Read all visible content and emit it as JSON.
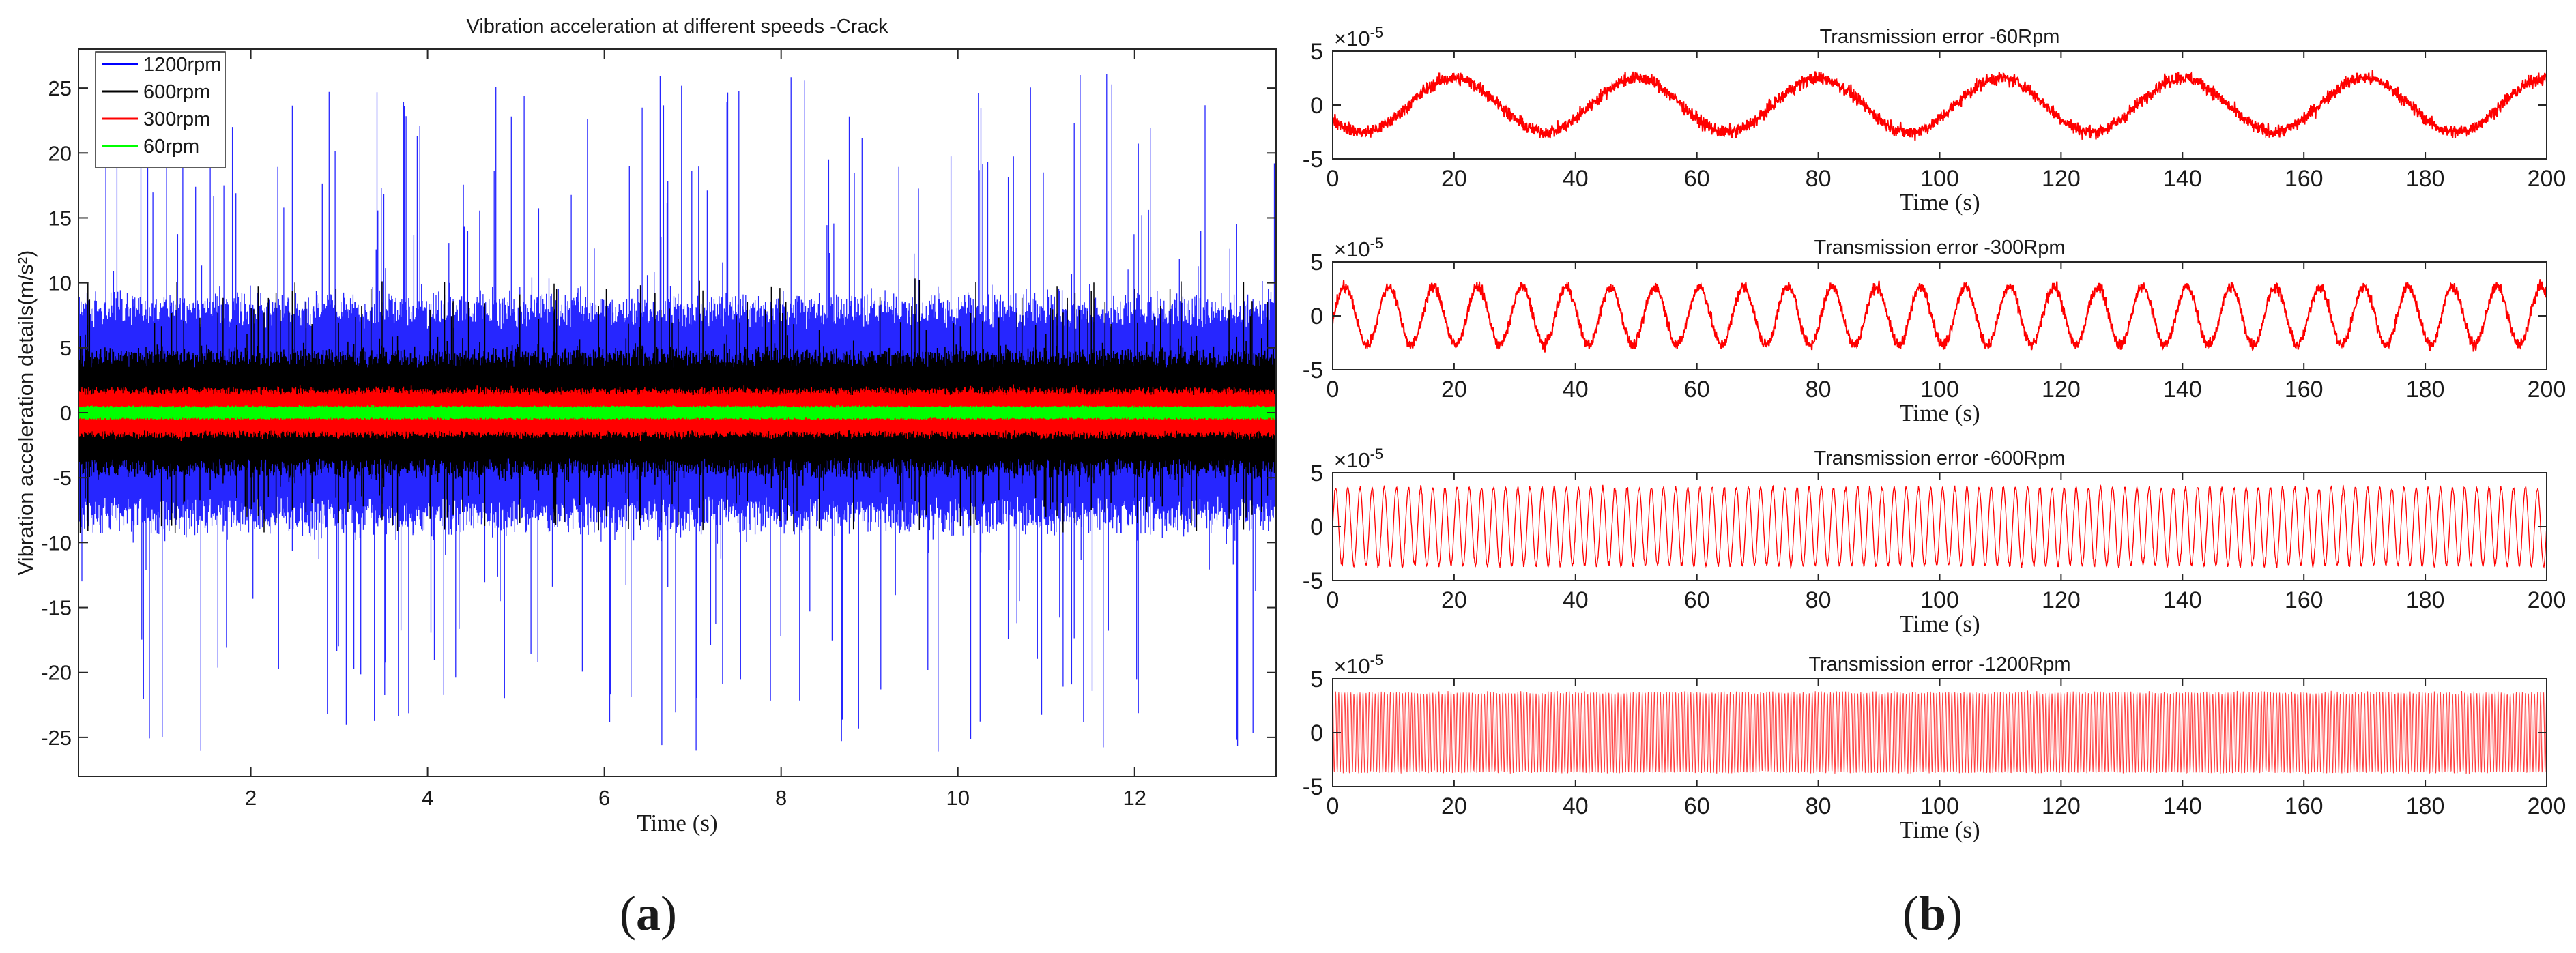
{
  "figure": {
    "panel_labels": [
      {
        "open": "(",
        "letter": "a",
        "close": ")"
      },
      {
        "open": "(",
        "letter": "b",
        "close": ")"
      }
    ]
  },
  "chart_data": [
    {
      "type": "line",
      "title": "Vibration acceleration at different speeds -Crack",
      "xlabel": "Time (s)",
      "ylabel": "Vibration acceleration details(m/s²)",
      "xlim": [
        0.05,
        13.6
      ],
      "ylim": [
        -28,
        28
      ],
      "xticks": [
        2,
        4,
        6,
        8,
        10,
        12
      ],
      "xtick_labels": [
        "2",
        "4",
        "6",
        "8",
        "10",
        "12"
      ],
      "yticks": [
        -25,
        -20,
        -15,
        -10,
        -5,
        0,
        5,
        10,
        15,
        20,
        25
      ],
      "ytick_labels": [
        "-25",
        "-20",
        "-15",
        "-10",
        "-5",
        "0",
        "5",
        "10",
        "15",
        "20",
        "25"
      ],
      "grid": false,
      "legend_position": "top-left",
      "series": [
        {
          "name": "1200rpm",
          "color": "#0000ff",
          "band": 8.5,
          "peak": 26.3
        },
        {
          "name": "600rpm",
          "color": "#000000",
          "band": 4.6,
          "peak": 10.5
        },
        {
          "name": "300rpm",
          "color": "#ff0000",
          "band": 1.8,
          "peak": 2.6
        },
        {
          "name": "60rpm",
          "color": "#00ff00",
          "band": 0.5,
          "peak": 0.8
        }
      ]
    },
    {
      "type": "line",
      "title": "Transmission error -60Rpm",
      "xlabel": "Time (s)",
      "exponent_base": "×10",
      "exponent_power": "-5",
      "xlim": [
        0,
        200
      ],
      "ylim": [
        -5,
        5
      ],
      "xticks": [
        0,
        20,
        40,
        60,
        80,
        100,
        120,
        140,
        160,
        180,
        200
      ],
      "xtick_labels": [
        "0",
        "20",
        "40",
        "60",
        "80",
        "100",
        "120",
        "140",
        "160",
        "180",
        "200"
      ],
      "yticks": [
        -5,
        0,
        5
      ],
      "ytick_labels": [
        "-5",
        "0",
        "5"
      ],
      "series": [
        {
          "color": "#ff0000",
          "amplitude": 2.5,
          "period": 30,
          "phase_peak_at": 20,
          "noise": 0.6
        }
      ]
    },
    {
      "type": "line",
      "title": "Transmission error -300Rpm",
      "xlabel": "Time (s)",
      "exponent_base": "×10",
      "exponent_power": "-5",
      "xlim": [
        0,
        200
      ],
      "ylim": [
        -5,
        5
      ],
      "xticks": [
        0,
        20,
        40,
        60,
        80,
        100,
        120,
        140,
        160,
        180,
        200
      ],
      "xtick_labels": [
        "0",
        "20",
        "40",
        "60",
        "80",
        "100",
        "120",
        "140",
        "160",
        "180",
        "200"
      ],
      "yticks": [
        -5,
        0,
        5
      ],
      "ytick_labels": [
        "-5",
        "0",
        "5"
      ],
      "series": [
        {
          "color": "#ff0000",
          "amplitude": 2.7,
          "period": 7.3,
          "phase_peak_at": 2,
          "noise": 0.5
        }
      ]
    },
    {
      "type": "line",
      "title": "Transmission error -600Rpm",
      "xlabel": "Time (s)",
      "exponent_base": "×10",
      "exponent_power": "-5",
      "xlim": [
        0,
        200
      ],
      "ylim": [
        -5,
        5
      ],
      "xticks": [
        0,
        20,
        40,
        60,
        80,
        100,
        120,
        140,
        160,
        180,
        200
      ],
      "xtick_labels": [
        "0",
        "20",
        "40",
        "60",
        "80",
        "100",
        "120",
        "140",
        "160",
        "180",
        "200"
      ],
      "yticks": [
        -5,
        0,
        5
      ],
      "ytick_labels": [
        "-5",
        "0",
        "5"
      ],
      "series": [
        {
          "color": "#ff0000",
          "amplitude": 3.7,
          "period": 2.0,
          "phase_peak_at": 0.5,
          "noise": 0.2
        }
      ]
    },
    {
      "type": "line",
      "title": "Transmission error -1200Rpm",
      "xlabel": "Time (s)",
      "exponent_base": "×10",
      "exponent_power": "-5",
      "xlim": [
        0,
        200
      ],
      "ylim": [
        -5,
        5
      ],
      "xticks": [
        0,
        20,
        40,
        60,
        80,
        100,
        120,
        140,
        160,
        180,
        200
      ],
      "xtick_labels": [
        "0",
        "20",
        "40",
        "60",
        "80",
        "100",
        "120",
        "140",
        "160",
        "180",
        "200"
      ],
      "yticks": [
        -5,
        0,
        5
      ],
      "ytick_labels": [
        "-5",
        "0",
        "5"
      ],
      "series": [
        {
          "color": "#ff0000",
          "amplitude": 3.8,
          "period": 0.5,
          "phase_peak_at": 0,
          "noise": 0.1
        }
      ]
    }
  ]
}
